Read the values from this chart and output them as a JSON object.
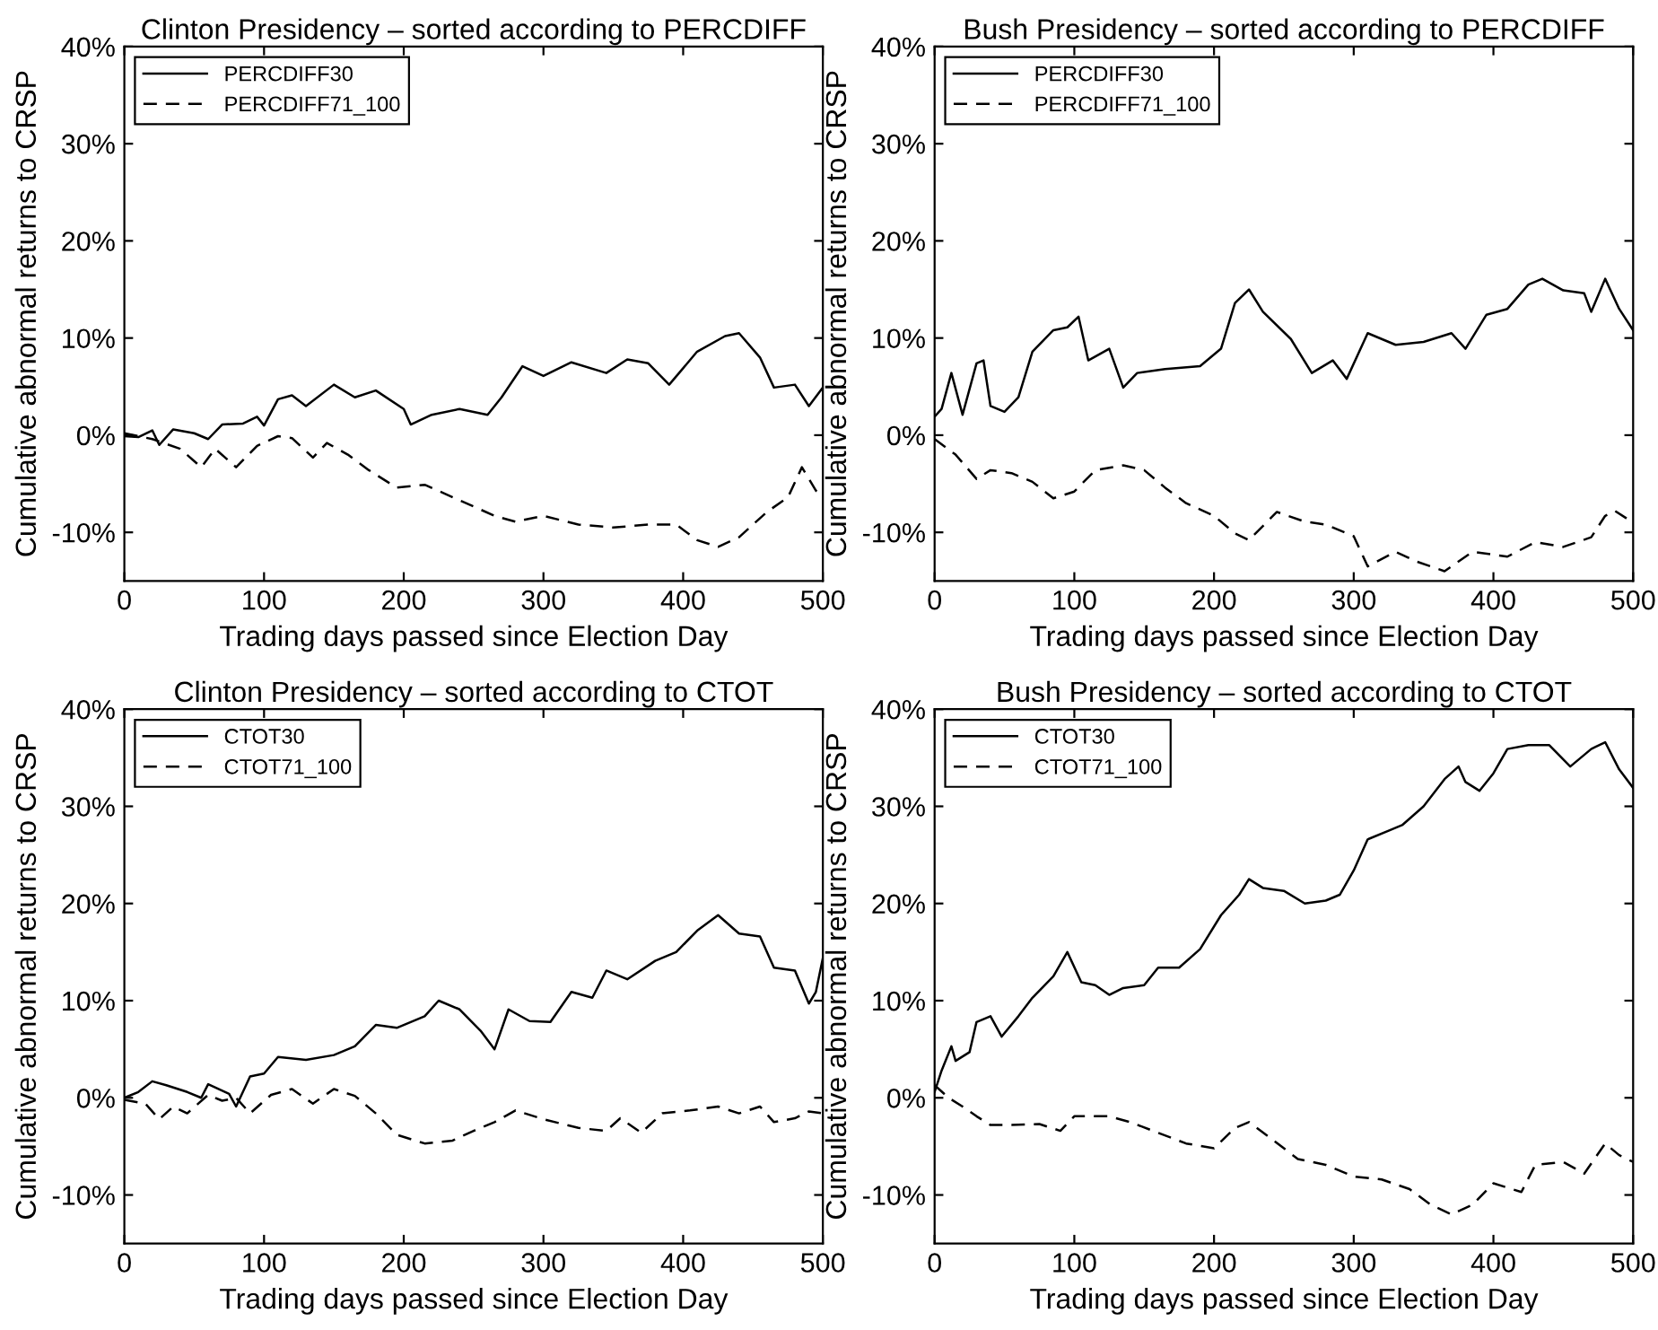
{
  "chart_data": [
    {
      "type": "line",
      "title": "Clinton Presidency – sorted according to PERCDIFF",
      "xlabel": "Trading days passed since Election Day",
      "ylabel": "Cumulative abnormal returns to CRSP",
      "xlim": [
        0,
        500
      ],
      "xticks": [
        0,
        100,
        200,
        300,
        400,
        500
      ],
      "ylim": [
        -15,
        40
      ],
      "yticks": [
        {
          "value": -10,
          "label": "-10%"
        },
        {
          "value": 0,
          "label": "0%"
        },
        {
          "value": 10,
          "label": "10%"
        },
        {
          "value": 20,
          "label": "20%"
        },
        {
          "value": 30,
          "label": "30%"
        },
        {
          "value": 40,
          "label": "40%"
        }
      ],
      "legend": "top left",
      "grid": false,
      "series": [
        {
          "name": "PERCDIFF30",
          "color": "#000000",
          "line_style": "solid",
          "x": [
            0,
            10,
            20,
            25,
            35,
            50,
            60,
            70,
            85,
            95,
            100,
            110,
            120,
            130,
            150,
            165,
            180,
            200,
            205,
            220,
            240,
            260,
            270,
            285,
            300,
            320,
            345,
            360,
            375,
            390,
            410,
            430,
            440,
            455,
            465,
            480,
            490,
            500
          ],
          "values": [
            -0.1,
            -0.2,
            0.5,
            -1,
            0.6,
            0.2,
            -0.4,
            1.1,
            1.2,
            1.9,
            1,
            3.7,
            4.1,
            3,
            5.2,
            3.9,
            4.6,
            2.7,
            1.1,
            2.1,
            2.7,
            2.1,
            3.9,
            7.1,
            6.1,
            7.5,
            6.4,
            7.8,
            7.4,
            5.2,
            8.6,
            10.2,
            10.5,
            8,
            4.9,
            5.2,
            3,
            4.9
          ]
        },
        {
          "name": "PERCDIFF71_100",
          "color": "#000000",
          "line_style": "dashed",
          "x": [
            0,
            20,
            40,
            55,
            65,
            80,
            95,
            110,
            120,
            135,
            145,
            160,
            175,
            195,
            215,
            240,
            265,
            280,
            300,
            325,
            350,
            375,
            395,
            410,
            425,
            440,
            460,
            475,
            485,
            495,
            500
          ],
          "values": [
            0.2,
            -0.4,
            -1.4,
            -3.3,
            -1.4,
            -3.3,
            -1.1,
            -0.1,
            -0.3,
            -2.3,
            -0.8,
            -2,
            -3.6,
            -5.4,
            -5.1,
            -6.7,
            -8.3,
            -8.9,
            -8.3,
            -9.2,
            -9.5,
            -9.2,
            -9.2,
            -10.8,
            -11.5,
            -10.5,
            -7.9,
            -6.4,
            -3.3,
            -5.7,
            -6.5
          ]
        }
      ]
    },
    {
      "type": "line",
      "title": "Bush Presidency – sorted according to PERCDIFF",
      "xlabel": "Trading days passed since Election Day",
      "ylabel": "Cumulative abnormal returns to CRSP",
      "xlim": [
        0,
        500
      ],
      "xticks": [
        0,
        100,
        200,
        300,
        400,
        500
      ],
      "ylim": [
        -15,
        40
      ],
      "yticks": [
        {
          "value": -10,
          "label": "-10%"
        },
        {
          "value": 0,
          "label": "0%"
        },
        {
          "value": 10,
          "label": "10%"
        },
        {
          "value": 20,
          "label": "20%"
        },
        {
          "value": 30,
          "label": "30%"
        },
        {
          "value": 40,
          "label": "40%"
        }
      ],
      "legend": "top left",
      "grid": false,
      "series": [
        {
          "name": "PERCDIFF30",
          "color": "#000000",
          "line_style": "solid",
          "x": [
            0,
            5,
            12,
            20,
            30,
            35,
            40,
            50,
            60,
            70,
            85,
            95,
            103,
            110,
            125,
            135,
            145,
            165,
            190,
            205,
            215,
            225,
            235,
            255,
            270,
            285,
            295,
            310,
            330,
            350,
            370,
            380,
            395,
            410,
            425,
            435,
            450,
            465,
            470,
            480,
            490,
            500
          ],
          "values": [
            1.9,
            2.7,
            6.4,
            2.1,
            7.4,
            7.7,
            3,
            2.4,
            3.9,
            8.6,
            10.8,
            11.1,
            12.2,
            7.7,
            8.9,
            4.9,
            6.4,
            6.8,
            7.1,
            8.9,
            13.6,
            15,
            12.7,
            9.9,
            6.4,
            7.7,
            5.8,
            10.5,
            9.3,
            9.6,
            10.5,
            8.9,
            12.4,
            13,
            15.5,
            16.1,
            14.9,
            14.6,
            12.7,
            16.1,
            13,
            10.8
          ]
        },
        {
          "name": "PERCDIFF71_100",
          "color": "#000000",
          "line_style": "dashed",
          "x": [
            0,
            15,
            30,
            40,
            55,
            70,
            85,
            100,
            115,
            135,
            150,
            165,
            180,
            200,
            215,
            225,
            245,
            265,
            280,
            300,
            310,
            330,
            345,
            365,
            385,
            410,
            430,
            450,
            470,
            480,
            487,
            500
          ],
          "values": [
            -0.4,
            -2,
            -4.5,
            -3.6,
            -3.9,
            -4.8,
            -6.5,
            -5.8,
            -3.6,
            -3.1,
            -3.6,
            -5.4,
            -7,
            -8.3,
            -10.1,
            -10.8,
            -7.9,
            -8.9,
            -9.2,
            -10.4,
            -13.5,
            -12,
            -13,
            -14,
            -12,
            -12.5,
            -11,
            -11.5,
            -10.5,
            -8.3,
            -7.8,
            -9
          ]
        }
      ]
    },
    {
      "type": "line",
      "title": "Clinton Presidency – sorted according to CTOT",
      "xlabel": "Trading days passed since Election Day",
      "ylabel": "Cumulative abnormal returns to CRSP",
      "xlim": [
        0,
        500
      ],
      "xticks": [
        0,
        100,
        200,
        300,
        400,
        500
      ],
      "ylim": [
        -15,
        40
      ],
      "yticks": [
        {
          "value": -10,
          "label": "-10%"
        },
        {
          "value": 0,
          "label": "0%"
        },
        {
          "value": 10,
          "label": "10%"
        },
        {
          "value": 20,
          "label": "20%"
        },
        {
          "value": 30,
          "label": "30%"
        },
        {
          "value": 40,
          "label": "40%"
        }
      ],
      "legend": "top left",
      "grid": false,
      "series": [
        {
          "name": "CTOT30",
          "color": "#000000",
          "line_style": "solid",
          "x": [
            0,
            10,
            20,
            30,
            45,
            55,
            60,
            75,
            80,
            90,
            100,
            110,
            130,
            150,
            165,
            180,
            195,
            215,
            225,
            240,
            255,
            265,
            275,
            290,
            305,
            320,
            335,
            345,
            360,
            380,
            395,
            410,
            425,
            440,
            455,
            465,
            480,
            490,
            495,
            500
          ],
          "values": [
            0,
            0.6,
            1.7,
            1.3,
            0.6,
            0,
            1.4,
            0.4,
            -0.9,
            2.2,
            2.5,
            4.2,
            3.9,
            4.4,
            5.3,
            7.5,
            7.2,
            8.4,
            10,
            9.1,
            6.9,
            5,
            9.1,
            7.9,
            7.8,
            10.9,
            10.3,
            13.1,
            12.2,
            14.1,
            15,
            17.2,
            18.8,
            16.9,
            16.6,
            13.4,
            13.1,
            9.7,
            10.9,
            14.4
          ]
        },
        {
          "name": "CTOT71_100",
          "color": "#000000",
          "line_style": "dashed",
          "x": [
            0,
            15,
            25,
            35,
            45,
            60,
            70,
            80,
            90,
            105,
            120,
            135,
            150,
            165,
            180,
            195,
            215,
            235,
            250,
            265,
            280,
            300,
            325,
            345,
            355,
            370,
            385,
            405,
            425,
            440,
            455,
            465,
            480,
            490,
            500
          ],
          "values": [
            -0.2,
            -0.6,
            -2.2,
            -0.9,
            -1.6,
            0.3,
            -0.3,
            0,
            -1.6,
            0.3,
            0.9,
            -0.6,
            0.9,
            0.2,
            -1.6,
            -3.8,
            -4.7,
            -4.4,
            -3.4,
            -2.5,
            -1.3,
            -2.2,
            -3.1,
            -3.4,
            -2.1,
            -3.6,
            -1.6,
            -1.3,
            -0.9,
            -1.6,
            -0.9,
            -2.5,
            -2.1,
            -1.4,
            -1.6
          ]
        }
      ]
    },
    {
      "type": "line",
      "title": "Bush Presidency – sorted according to CTOT",
      "xlabel": "Trading days passed since Election Day",
      "ylabel": "Cumulative abnormal returns to CRSP",
      "xlim": [
        0,
        500
      ],
      "xticks": [
        0,
        100,
        200,
        300,
        400,
        500
      ],
      "ylim": [
        -15,
        40
      ],
      "yticks": [
        {
          "value": -10,
          "label": "-10%"
        },
        {
          "value": 0,
          "label": "0%"
        },
        {
          "value": 10,
          "label": "10%"
        },
        {
          "value": 20,
          "label": "20%"
        },
        {
          "value": 30,
          "label": "30%"
        },
        {
          "value": 40,
          "label": "40%"
        }
      ],
      "legend": "top left",
      "grid": false,
      "series": [
        {
          "name": "CTOT30",
          "color": "#000000",
          "line_style": "solid",
          "x": [
            0,
            5,
            12,
            15,
            25,
            30,
            40,
            48,
            60,
            70,
            85,
            95,
            105,
            115,
            125,
            135,
            150,
            160,
            175,
            190,
            205,
            218,
            225,
            235,
            250,
            265,
            280,
            290,
            300,
            310,
            325,
            335,
            350,
            365,
            375,
            380,
            390,
            400,
            410,
            425,
            440,
            455,
            470,
            480,
            490,
            500
          ],
          "values": [
            0.6,
            2.8,
            5.3,
            3.8,
            4.7,
            7.8,
            8.4,
            6.3,
            8.4,
            10.3,
            12.5,
            15,
            11.9,
            11.6,
            10.6,
            11.3,
            11.6,
            13.4,
            13.4,
            15.3,
            18.8,
            20.9,
            22.5,
            21.6,
            21.3,
            20,
            20.3,
            20.9,
            23.4,
            26.6,
            27.5,
            28.1,
            30,
            32.8,
            34.1,
            32.5,
            31.6,
            33.4,
            35.9,
            36.3,
            36.3,
            34.1,
            35.9,
            36.6,
            33.8,
            31.9
          ]
        },
        {
          "name": "CTOT71_100",
          "color": "#000000",
          "line_style": "dashed",
          "x": [
            0,
            10,
            20,
            30,
            40,
            55,
            75,
            90,
            100,
            125,
            140,
            160,
            180,
            200,
            215,
            225,
            240,
            260,
            280,
            300,
            320,
            340,
            355,
            370,
            385,
            400,
            420,
            430,
            450,
            465,
            480,
            490,
            500
          ],
          "values": [
            1.3,
            0,
            -0.9,
            -1.9,
            -2.8,
            -2.8,
            -2.7,
            -3.4,
            -1.9,
            -1.9,
            -2.5,
            -3.6,
            -4.7,
            -5.2,
            -3.1,
            -2.5,
            -4.1,
            -6.3,
            -6.9,
            -8.1,
            -8.4,
            -9.4,
            -11,
            -12,
            -11,
            -8.8,
            -9.7,
            -6.9,
            -6.6,
            -7.8,
            -4.7,
            -5.9,
            -6.6
          ]
        }
      ]
    }
  ]
}
